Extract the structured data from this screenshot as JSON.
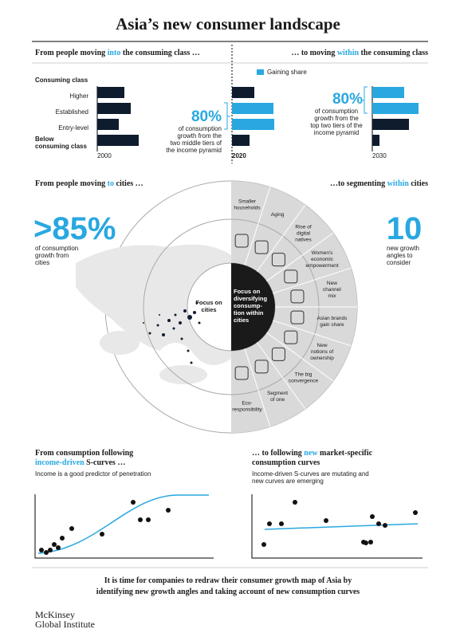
{
  "title": "Asia’s new consumer landscape",
  "class_section": {
    "left_heading": {
      "before": "From people moving ",
      "highlight": "into",
      "after": " the consuming class …"
    },
    "right_heading": {
      "before": "… to moving ",
      "highlight": "within",
      "after": " the consuming class"
    },
    "legend": "Gaining share",
    "axis_title": "Consuming class",
    "tiers": [
      "Higher",
      "Established",
      "Entry-level"
    ],
    "below_tier": [
      "Below",
      "consuming class"
    ],
    "years": [
      "2000",
      "2020",
      "2030"
    ],
    "left_stat": {
      "value": "80%",
      "lines": [
        "of consumption",
        "growth from the",
        "two middle tiers of",
        "the income pyramid"
      ]
    },
    "right_stat": {
      "value": "80%",
      "lines": [
        "of consumption",
        "growth from the",
        "top two tiers of the",
        "income pyramid"
      ]
    }
  },
  "city_section": {
    "left_heading": {
      "before": "From people moving ",
      "highlight": "to",
      "after": " cities …"
    },
    "right_heading": {
      "before": "…to segmenting ",
      "highlight": "within",
      "after": " cities"
    },
    "left_stat": {
      "value": ">85%",
      "lines": [
        "of consumption",
        "growth from",
        "cities"
      ]
    },
    "right_stat": {
      "value": "10",
      "lines": [
        "new growth",
        "angles to",
        "consider"
      ]
    },
    "inner_left": [
      "Focus on",
      "cities"
    ],
    "inner_right": [
      "Focus on",
      "diversifying",
      "consump-",
      "tion within",
      "cities"
    ],
    "angles": [
      [
        "Smaller",
        "households"
      ],
      [
        "Aging"
      ],
      [
        "Rise of",
        "digital",
        "natives"
      ],
      [
        "Women's",
        "economic",
        "empowerment"
      ],
      [
        "New",
        "channel",
        "mix"
      ],
      [
        "Asian brands",
        "gain share"
      ],
      [
        "New",
        "notions of",
        "ownership"
      ],
      [
        "The big",
        "convergence"
      ],
      [
        "Segment",
        "of one"
      ],
      [
        "Eco-",
        "responsibility"
      ]
    ]
  },
  "curve_section": {
    "left_heading": [
      {
        "before": "From consumption following",
        "highlight": "",
        "after": ""
      },
      {
        "before": "",
        "highlight": "income-driven",
        "after": " S-curves …"
      }
    ],
    "left_note": [
      "Income is a good predictor of penetration"
    ],
    "right_heading": [
      {
        "before": "… to following ",
        "highlight": "new",
        "after": " market-specific"
      },
      {
        "before": "consumption curves",
        "highlight": "",
        "after": ""
      }
    ],
    "right_note": [
      "Income-driven S-curves are mutating and",
      "new curves are emerging"
    ]
  },
  "footer": {
    "lines": [
      "It is time for companies to redraw their consumer growth map of Asia by",
      "identifying new growth angles and taking account of new consumption curves"
    ],
    "brand": [
      "McKinsey",
      "Global Institute"
    ]
  }
}
